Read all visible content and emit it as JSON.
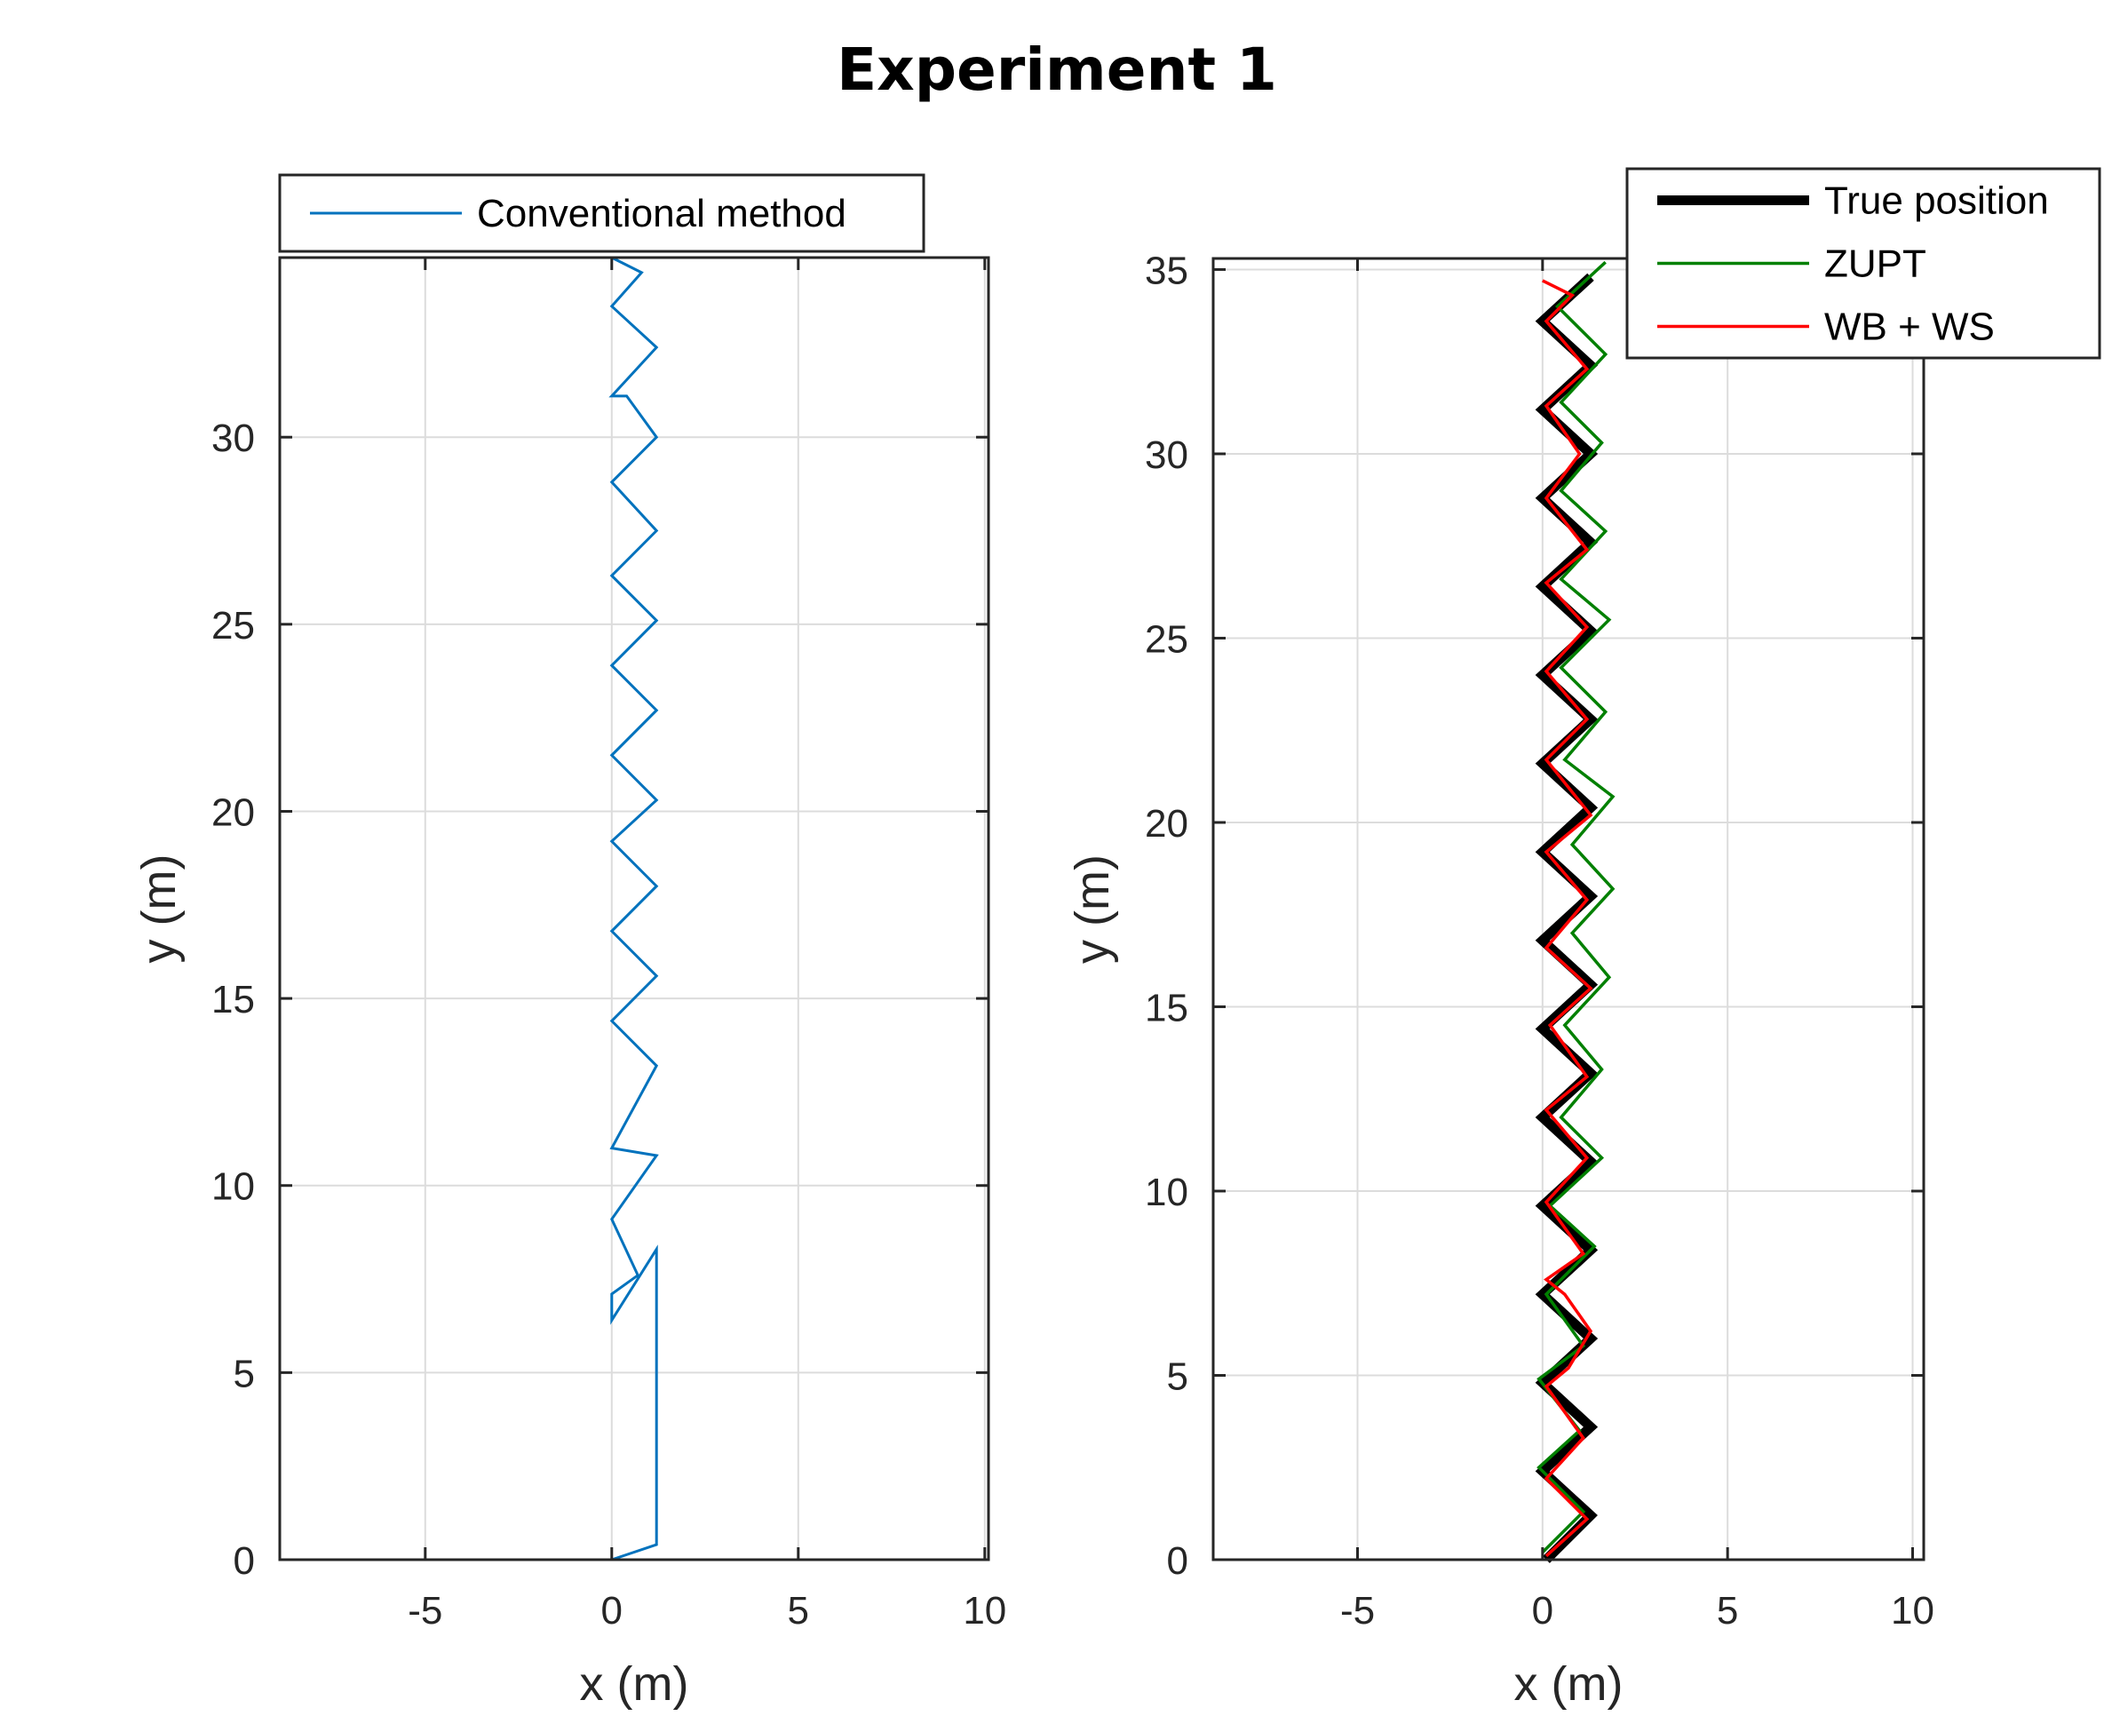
{
  "figure": {
    "title": "Experiment 1"
  },
  "chart_data": [
    {
      "type": "line",
      "xlabel": "x (m)",
      "ylabel": "y (m)",
      "xlim": [
        -8.9,
        10.1
      ],
      "ylim": [
        0,
        34.8
      ],
      "xticks": [
        -5,
        0,
        5,
        10
      ],
      "yticks": [
        0,
        5,
        10,
        15,
        20,
        25,
        30
      ],
      "grid": true,
      "legend_position": "above-plot-left",
      "series": [
        {
          "name": "Conventional method",
          "color": "#0072BD",
          "points": [
            [
              0.0,
              0.0
            ],
            [
              1.2,
              0.4
            ],
            [
              1.2,
              8.3
            ],
            [
              0.0,
              6.4
            ],
            [
              0.0,
              7.1
            ],
            [
              0.7,
              7.6
            ],
            [
              0.0,
              9.1
            ],
            [
              1.2,
              10.8
            ],
            [
              0.0,
              11.0
            ],
            [
              1.2,
              13.2
            ],
            [
              0.0,
              14.4
            ],
            [
              1.2,
              15.6
            ],
            [
              0.0,
              16.8
            ],
            [
              1.2,
              18.0
            ],
            [
              0.0,
              19.2
            ],
            [
              1.2,
              20.3
            ],
            [
              0.0,
              21.5
            ],
            [
              1.2,
              22.7
            ],
            [
              0.0,
              23.9
            ],
            [
              1.2,
              25.1
            ],
            [
              0.0,
              26.3
            ],
            [
              1.2,
              27.5
            ],
            [
              0.0,
              28.8
            ],
            [
              1.2,
              30.0
            ],
            [
              0.4,
              31.1
            ],
            [
              0.0,
              31.1
            ],
            [
              1.2,
              32.4
            ],
            [
              0.0,
              33.5
            ],
            [
              0.8,
              34.4
            ],
            [
              0.0,
              34.8
            ]
          ]
        }
      ]
    },
    {
      "type": "line",
      "xlabel": "x (m)",
      "ylabel": "y (m)",
      "xlim": [
        -8.9,
        10.3
      ],
      "ylim": [
        0,
        35.3
      ],
      "xticks": [
        -5,
        0,
        5,
        10
      ],
      "yticks": [
        0,
        5,
        10,
        15,
        20,
        25,
        30,
        35
      ],
      "grid": true,
      "legend_position": "top-right",
      "series": [
        {
          "name": "True position",
          "color": "#000000",
          "points": [
            [
              0.1,
              0.0
            ],
            [
              1.3,
              1.2
            ],
            [
              0.0,
              2.4
            ],
            [
              1.3,
              3.6
            ],
            [
              0.0,
              4.8
            ],
            [
              1.3,
              6.0
            ],
            [
              0.0,
              7.2
            ],
            [
              1.3,
              8.4
            ],
            [
              0.0,
              9.6
            ],
            [
              1.3,
              10.8
            ],
            [
              0.0,
              12.0
            ],
            [
              1.3,
              13.2
            ],
            [
              0.0,
              14.4
            ],
            [
              1.3,
              15.6
            ],
            [
              0.0,
              16.8
            ],
            [
              1.3,
              18.0
            ],
            [
              0.0,
              19.2
            ],
            [
              1.3,
              20.4
            ],
            [
              0.0,
              21.6
            ],
            [
              1.3,
              22.8
            ],
            [
              0.0,
              24.0
            ],
            [
              1.3,
              25.2
            ],
            [
              0.0,
              26.4
            ],
            [
              1.3,
              27.6
            ],
            [
              0.0,
              28.8
            ],
            [
              1.3,
              30.0
            ],
            [
              0.0,
              31.2
            ],
            [
              1.3,
              32.4
            ],
            [
              0.0,
              33.6
            ],
            [
              1.3,
              34.8
            ]
          ]
        },
        {
          "name": "ZUPT",
          "color": "#008000",
          "points": [
            [
              0.0,
              0.2
            ],
            [
              1.1,
              1.3
            ],
            [
              -0.1,
              2.5
            ],
            [
              1.0,
              3.5
            ],
            [
              -0.1,
              4.9
            ],
            [
              1.1,
              5.8
            ],
            [
              0.1,
              7.2
            ],
            [
              1.4,
              8.5
            ],
            [
              0.2,
              9.6
            ],
            [
              1.6,
              10.9
            ],
            [
              0.5,
              12.0
            ],
            [
              1.6,
              13.3
            ],
            [
              0.6,
              14.5
            ],
            [
              1.8,
              15.8
            ],
            [
              0.8,
              17.0
            ],
            [
              1.9,
              18.2
            ],
            [
              0.8,
              19.4
            ],
            [
              1.9,
              20.7
            ],
            [
              0.6,
              21.7
            ],
            [
              1.7,
              23.0
            ],
            [
              0.5,
              24.2
            ],
            [
              1.8,
              25.5
            ],
            [
              0.5,
              26.6
            ],
            [
              1.7,
              27.9
            ],
            [
              0.5,
              29.0
            ],
            [
              1.6,
              30.3
            ],
            [
              0.5,
              31.4
            ],
            [
              1.7,
              32.7
            ],
            [
              0.4,
              34.0
            ],
            [
              1.7,
              35.2
            ]
          ]
        },
        {
          "name": "WB + WS",
          "color": "#FF0000",
          "points": [
            [
              0.1,
              0.1
            ],
            [
              1.2,
              1.1
            ],
            [
              0.1,
              2.2
            ],
            [
              1.1,
              3.3
            ],
            [
              0.1,
              4.7
            ],
            [
              0.7,
              5.2
            ],
            [
              1.3,
              6.2
            ],
            [
              0.6,
              7.2
            ],
            [
              0.1,
              7.6
            ],
            [
              1.1,
              8.3
            ],
            [
              0.1,
              9.7
            ],
            [
              1.2,
              10.9
            ],
            [
              0.1,
              12.2
            ],
            [
              1.2,
              13.1
            ],
            [
              0.2,
              14.5
            ],
            [
              1.3,
              15.5
            ],
            [
              0.1,
              16.6
            ],
            [
              1.2,
              17.9
            ],
            [
              0.1,
              19.2
            ],
            [
              1.3,
              20.2
            ],
            [
              0.1,
              21.7
            ],
            [
              1.2,
              22.8
            ],
            [
              0.1,
              24.1
            ],
            [
              1.2,
              25.3
            ],
            [
              0.1,
              26.5
            ],
            [
              1.2,
              27.4
            ],
            [
              0.1,
              28.8
            ],
            [
              1.0,
              30.0
            ],
            [
              0.1,
              31.3
            ],
            [
              1.2,
              32.3
            ],
            [
              0.1,
              33.6
            ],
            [
              0.8,
              34.3
            ],
            [
              0.0,
              34.7
            ]
          ]
        }
      ]
    }
  ]
}
